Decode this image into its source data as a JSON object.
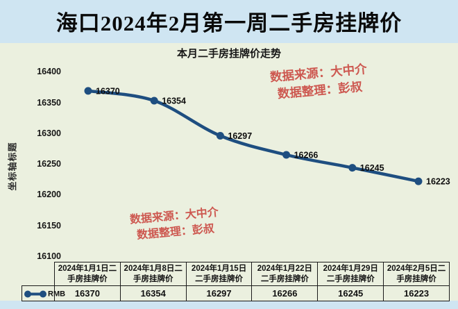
{
  "page": {
    "title": "海口2024年2月第一周二手房挂牌价"
  },
  "chart": {
    "title": "本月二手房挂牌价走势",
    "y_axis_title": "坐标轴标题",
    "watermark_top": {
      "line1": "数据来源：大中介",
      "line2": "数据整理：彭叔"
    },
    "watermark_bottom": {
      "line1": "数据来源：大中介",
      "line2": "数据整理：彭叔"
    }
  },
  "chart_data": {
    "type": "line",
    "title": "本月二手房挂牌价走势",
    "categories": [
      "2024年1月1日二手房挂牌价",
      "2024年1月8日二手房挂牌价",
      "2024年1月15日二手房挂牌价",
      "2024年1月22日二手房挂牌价",
      "2024年1月29日二手房挂牌价",
      "2024年2月5日二手房挂牌价"
    ],
    "series": [
      {
        "name": "RMB",
        "values": [
          16370,
          16354,
          16297,
          16266,
          16245,
          16223
        ]
      }
    ],
    "ylabel": "坐标轴标题",
    "ylim": [
      16100,
      16400
    ],
    "y_ticks": [
      16400,
      16350,
      16300,
      16250,
      16200,
      16150,
      16100
    ],
    "grid": false,
    "data_labels": true,
    "legend_position": "table-left"
  },
  "colors": {
    "page_bg": "#CFE5F2",
    "chart_bg": "#EBF0DF",
    "line": "#1E4E80",
    "watermark": "#CD5850",
    "text": "#111111",
    "table_border": "#1A1A1A"
  }
}
